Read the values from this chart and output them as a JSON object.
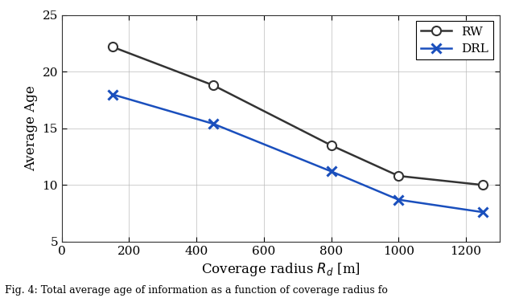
{
  "rw_x": [
    150,
    450,
    800,
    1000,
    1250
  ],
  "rw_y": [
    22.2,
    18.8,
    13.5,
    10.8,
    10.0
  ],
  "drl_x": [
    150,
    450,
    800,
    1000,
    1250
  ],
  "drl_y": [
    18.0,
    15.4,
    11.2,
    8.7,
    7.6
  ],
  "rw_color": "#333333",
  "drl_color": "#1a4fbd",
  "rw_label": "RW",
  "drl_label": "DRL",
  "xlabel": "Coverage radius $R_d$ [m]",
  "ylabel": "Average Age",
  "xlim": [
    0,
    1300
  ],
  "ylim": [
    5,
    25
  ],
  "xticks": [
    0,
    200,
    400,
    600,
    800,
    1000,
    1200
  ],
  "yticks": [
    5,
    10,
    15,
    20,
    25
  ],
  "linewidth": 1.8,
  "markersize": 8,
  "grid_color": "#bbbbbb",
  "grid_alpha": 0.7,
  "background_color": "#ffffff",
  "caption": "Fig. 4: Total average age of information as a function of coverage radius fo"
}
